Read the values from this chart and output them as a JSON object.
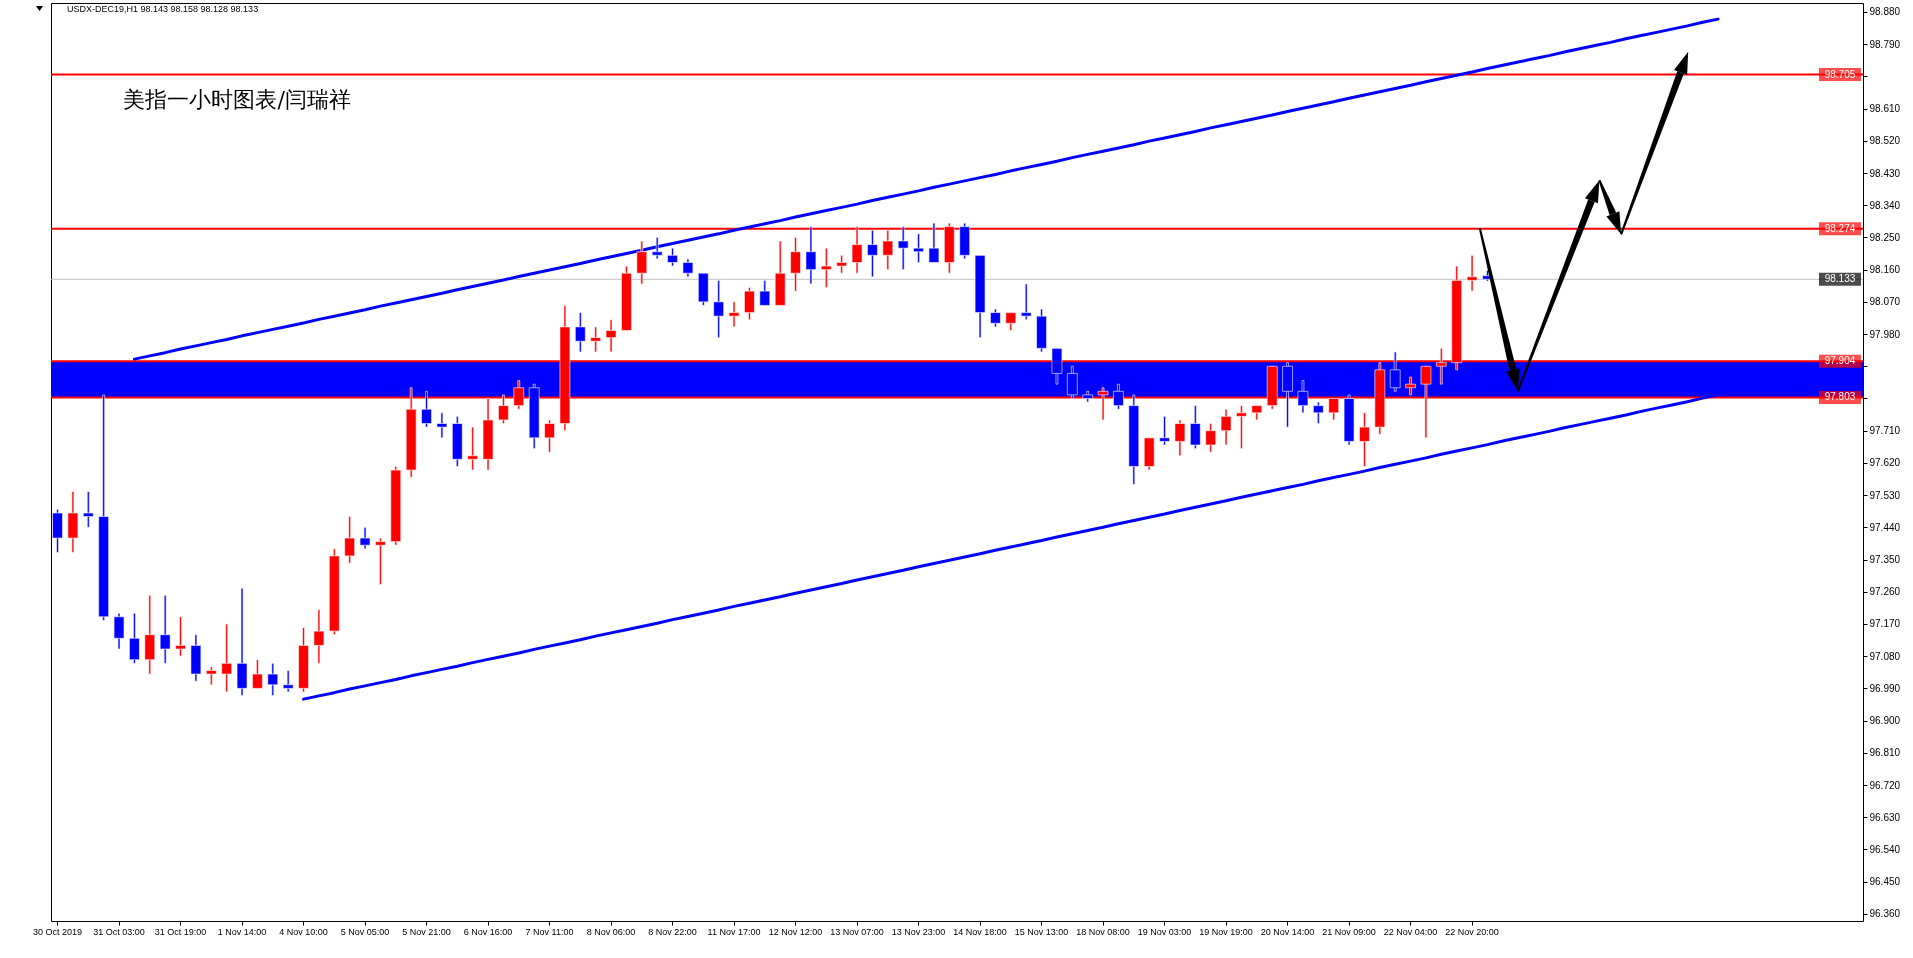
{
  "chart_data": {
    "type": "candlestick",
    "title": "美指一小时图表/闫瑞祥",
    "subtitle": "USDX-DEC19,H1  98.143 98.158 98.128 98.133",
    "categories": [
      "30 Oct 2019",
      null,
      null,
      null,
      "31 Oct 03:00",
      null,
      null,
      null,
      "31 Oct 19:00",
      null,
      null,
      null,
      "1 Nov 14:00",
      null,
      null,
      null,
      "4 Nov 10:00",
      null,
      null,
      null,
      "5 Nov 05:00",
      null,
      null,
      null,
      "5 Nov 21:00",
      null,
      null,
      null,
      "6 Nov 16:00",
      null,
      null,
      null,
      "7 Nov 11:00",
      null,
      null,
      null,
      "8 Nov 06:00",
      null,
      null,
      null,
      "8 Nov 22:00",
      null,
      null,
      null,
      "11 Nov 17:00",
      null,
      null,
      null,
      "12 Nov 12:00",
      null,
      null,
      null,
      "13 Nov 07:00",
      null,
      null,
      null,
      "13 Nov 23:00",
      null,
      null,
      null,
      "14 Nov 18:00",
      null,
      null,
      null,
      "15 Nov 13:00",
      null,
      null,
      null,
      "18 Nov 08:00",
      null,
      null,
      null,
      "19 Nov 03:00",
      null,
      null,
      null,
      "19 Nov 19:00",
      null,
      null,
      null,
      "20 Nov 14:00",
      null,
      null,
      null,
      "21 Nov 09:00",
      null,
      null,
      null,
      "22 Nov 04:00",
      null,
      null,
      null,
      "22 Nov 20:00",
      null,
      null,
      null,
      null,
      null,
      null,
      null,
      null,
      null,
      null,
      null,
      null,
      null,
      null,
      null,
      null,
      null,
      null,
      null,
      null,
      null,
      null,
      null,
      null,
      null
    ],
    "ohlc": [
      [
        97.48,
        97.49,
        97.37,
        97.41
      ],
      [
        97.41,
        97.54,
        97.37,
        97.48
      ],
      [
        97.48,
        97.54,
        97.44,
        97.47
      ],
      [
        97.47,
        97.81,
        97.18,
        97.19
      ],
      [
        97.19,
        97.2,
        97.1,
        97.13
      ],
      [
        97.13,
        97.2,
        97.06,
        97.07
      ],
      [
        97.07,
        97.25,
        97.03,
        97.14
      ],
      [
        97.14,
        97.25,
        97.06,
        97.1
      ],
      [
        97.1,
        97.19,
        97.08,
        97.11
      ],
      [
        97.11,
        97.14,
        97.01,
        97.03
      ],
      [
        97.03,
        97.05,
        97.0,
        97.04
      ],
      [
        97.03,
        97.17,
        96.98,
        97.06
      ],
      [
        97.06,
        97.27,
        96.97,
        96.99
      ],
      [
        96.99,
        97.07,
        96.99,
        97.03
      ],
      [
        97.03,
        97.06,
        96.97,
        97.0
      ],
      [
        97.0,
        97.04,
        96.98,
        96.99
      ],
      [
        96.99,
        97.16,
        96.98,
        97.11
      ],
      [
        97.11,
        97.21,
        97.06,
        97.15
      ],
      [
        97.15,
        97.38,
        97.14,
        97.36
      ],
      [
        97.36,
        97.47,
        97.34,
        97.41
      ],
      [
        97.41,
        97.44,
        97.38,
        97.39
      ],
      [
        97.39,
        97.41,
        97.28,
        97.4
      ],
      [
        97.4,
        97.61,
        97.39,
        97.6
      ],
      [
        97.6,
        97.83,
        97.58,
        97.77
      ],
      [
        97.77,
        97.82,
        97.72,
        97.73
      ],
      [
        97.73,
        97.76,
        97.69,
        97.72
      ],
      [
        97.73,
        97.75,
        97.61,
        97.63
      ],
      [
        97.63,
        97.72,
        97.6,
        97.64
      ],
      [
        97.63,
        97.8,
        97.6,
        97.74
      ],
      [
        97.74,
        97.81,
        97.73,
        97.78
      ],
      [
        97.78,
        97.85,
        97.77,
        97.83
      ],
      [
        97.83,
        97.84,
        97.66,
        97.69
      ],
      [
        97.69,
        97.74,
        97.65,
        97.73
      ],
      [
        97.73,
        98.06,
        97.71,
        98.0
      ],
      [
        98.0,
        98.04,
        97.93,
        97.96
      ],
      [
        97.96,
        98.0,
        97.93,
        97.97
      ],
      [
        97.97,
        98.02,
        97.93,
        97.99
      ],
      [
        97.99,
        98.17,
        97.99,
        98.15
      ],
      [
        98.15,
        98.24,
        98.12,
        98.21
      ],
      [
        98.21,
        98.25,
        98.19,
        98.2
      ],
      [
        98.2,
        98.22,
        98.17,
        98.18
      ],
      [
        98.18,
        98.19,
        98.14,
        98.15
      ],
      [
        98.15,
        98.15,
        98.06,
        98.07
      ],
      [
        98.07,
        98.13,
        97.97,
        98.03
      ],
      [
        98.03,
        98.07,
        98.0,
        98.04
      ],
      [
        98.04,
        98.11,
        98.02,
        98.1
      ],
      [
        98.1,
        98.13,
        98.06,
        98.06
      ],
      [
        98.06,
        98.24,
        98.06,
        98.15
      ],
      [
        98.15,
        98.25,
        98.1,
        98.21
      ],
      [
        98.21,
        98.28,
        98.12,
        98.16
      ],
      [
        98.16,
        98.22,
        98.11,
        98.17
      ],
      [
        98.17,
        98.2,
        98.15,
        98.18
      ],
      [
        98.18,
        98.28,
        98.15,
        98.23
      ],
      [
        98.23,
        98.27,
        98.14,
        98.2
      ],
      [
        98.2,
        98.27,
        98.16,
        98.24
      ],
      [
        98.24,
        98.28,
        98.16,
        98.22
      ],
      [
        98.22,
        98.26,
        98.18,
        98.21
      ],
      [
        98.22,
        98.29,
        98.18,
        98.18
      ],
      [
        98.18,
        98.29,
        98.15,
        98.28
      ],
      [
        98.28,
        98.29,
        98.19,
        98.2
      ],
      [
        98.2,
        98.2,
        97.97,
        98.04
      ],
      [
        98.04,
        98.05,
        98.0,
        98.01
      ],
      [
        98.01,
        98.04,
        97.99,
        98.04
      ],
      [
        98.04,
        98.12,
        98.02,
        98.03
      ],
      [
        98.03,
        98.05,
        97.93,
        97.94
      ],
      [
        97.94,
        97.94,
        97.84,
        97.87
      ],
      [
        97.87,
        97.89,
        97.8,
        97.81
      ],
      [
        97.81,
        97.82,
        97.79,
        97.8
      ],
      [
        97.81,
        97.83,
        97.74,
        97.82
      ],
      [
        97.82,
        97.84,
        97.77,
        97.78
      ],
      [
        97.78,
        97.81,
        97.56,
        97.61
      ],
      [
        97.61,
        97.69,
        97.6,
        97.69
      ],
      [
        97.69,
        97.75,
        97.67,
        97.68
      ],
      [
        97.68,
        97.74,
        97.64,
        97.73
      ],
      [
        97.73,
        97.78,
        97.66,
        97.67
      ],
      [
        97.67,
        97.73,
        97.65,
        97.71
      ],
      [
        97.71,
        97.77,
        97.67,
        97.75
      ],
      [
        97.75,
        97.78,
        97.66,
        97.76
      ],
      [
        97.76,
        97.78,
        97.74,
        97.78
      ],
      [
        97.78,
        97.89,
        97.77,
        97.89
      ],
      [
        97.89,
        97.9,
        97.72,
        97.82
      ],
      [
        97.82,
        97.85,
        97.76,
        97.78
      ],
      [
        97.78,
        97.79,
        97.73,
        97.76
      ],
      [
        97.76,
        97.8,
        97.74,
        97.8
      ],
      [
        97.8,
        97.81,
        97.67,
        97.68
      ],
      [
        97.68,
        97.76,
        97.61,
        97.72
      ],
      [
        97.72,
        97.9,
        97.7,
        97.88
      ],
      [
        97.88,
        97.93,
        97.82,
        97.83
      ],
      [
        97.83,
        97.86,
        97.81,
        97.84
      ],
      [
        97.84,
        97.89,
        97.69,
        97.89
      ],
      [
        97.89,
        97.94,
        97.84,
        97.9
      ],
      [
        97.9,
        98.17,
        97.88,
        98.13
      ],
      [
        98.13,
        98.2,
        98.1,
        98.14
      ],
      [
        98.143,
        98.158,
        98.128,
        98.133
      ],
      null,
      null,
      null,
      null,
      null,
      null,
      null,
      null,
      null,
      null,
      null,
      null,
      null,
      null,
      null,
      null,
      null,
      null,
      null,
      null,
      null,
      null,
      null,
      null
    ],
    "colors": [
      "#0000ff",
      "#ff0000",
      "#0000ff",
      "#0000ff",
      "#0000ff",
      "#0000ff",
      "#ff0000",
      "#0000ff",
      "#ff0000",
      "#0000ff",
      "#ff0000",
      "#ff0000",
      "#0000ff",
      "#ff0000",
      "#0000ff",
      "#0000ff",
      "#ff0000",
      "#ff0000",
      "#ff0000",
      "#ff0000",
      "#0000ff",
      "#ff0000",
      "#ff0000",
      "#ff0000",
      "#0000ff",
      "#0000ff",
      "#0000ff",
      "#ff0000",
      "#ff0000",
      "#ff0000",
      "#ff0000",
      "#0000ff",
      "#ff0000",
      "#ff0000",
      "#0000ff",
      "#ff0000",
      "#ff0000",
      "#ff0000",
      "#ff0000",
      "#0000ff",
      "#0000ff",
      "#0000ff",
      "#0000ff",
      "#0000ff",
      "#ff0000",
      "#ff0000",
      "#0000ff",
      "#ff0000",
      "#ff0000",
      "#0000ff",
      "#ff0000",
      "#ff0000",
      "#ff0000",
      "#0000ff",
      "#ff0000",
      "#0000ff",
      "#0000ff",
      "#0000ff",
      "#ff0000",
      "#0000ff",
      "#0000ff",
      "#0000ff",
      "#ff0000",
      "#0000ff",
      "#0000ff",
      "#0000ff",
      "#0000ff",
      "#0000ff",
      "#ff0000",
      "#0000ff",
      "#0000ff",
      "#ff0000",
      "#0000ff",
      "#ff0000",
      "#0000ff",
      "#ff0000",
      "#ff0000",
      "#ff0000",
      "#ff0000",
      "#ff0000",
      "#0000ff",
      "#0000ff",
      "#0000ff",
      "#ff0000",
      "#0000ff",
      "#ff0000",
      "#ff0000",
      "#0000ff",
      "#ff0000",
      "#ff0000",
      "#ff0000",
      "#ff0000",
      "#ff0000",
      "#0000ff",
      null,
      null,
      null,
      null,
      null,
      null,
      null,
      null,
      null,
      null,
      null,
      null,
      null,
      null,
      null,
      null,
      null,
      null,
      null,
      null,
      null,
      null,
      null,
      null
    ],
    "series": [
      {
        "type": "line",
        "color": "#0000ff",
        "values": [
          null,
          null,
          null,
          null,
          null,
          null,
          null,
          null,
          null,
          null,
          null,
          null,
          null,
          null,
          null,
          null,
          96.96,
          96.969,
          96.978,
          96.988,
          96.997,
          97.006,
          97.015,
          97.025,
          97.034,
          97.043,
          97.052,
          97.062,
          97.071,
          97.08,
          97.089,
          97.099,
          97.108,
          97.117,
          97.126,
          97.136,
          97.145,
          97.154,
          97.163,
          97.172,
          97.182,
          97.191,
          97.2,
          97.209,
          97.219,
          97.228,
          97.237,
          97.246,
          97.256,
          97.265,
          97.274,
          97.283,
          97.293,
          97.302,
          97.311,
          97.32,
          97.33,
          97.339,
          97.348,
          97.357,
          97.366,
          97.376,
          97.385,
          97.394,
          97.403,
          97.413,
          97.422,
          97.431,
          97.44,
          97.45,
          97.459,
          97.468,
          97.477,
          97.487,
          97.496,
          97.505,
          97.514,
          97.524,
          97.533,
          97.542,
          97.551,
          97.56,
          97.57,
          97.579,
          97.588,
          97.597,
          97.607,
          97.616,
          97.625,
          97.634,
          97.644,
          97.653,
          97.662,
          97.671,
          97.681,
          97.69,
          97.699,
          97.708,
          97.718,
          97.727,
          97.736,
          97.745,
          97.754,
          97.764,
          97.773,
          97.782,
          97.791,
          97.801,
          97.81,
          null,
          null,
          null,
          null,
          null,
          null,
          null,
          null,
          null
        ]
      },
      {
        "type": "line",
        "color": "#0000ff",
        "values": [
          null,
          null,
          null,
          null,
          null,
          97.91,
          97.919,
          97.928,
          97.938,
          97.947,
          97.956,
          97.965,
          97.975,
          97.984,
          97.993,
          98.002,
          98.011,
          98.021,
          98.03,
          98.039,
          98.048,
          98.058,
          98.067,
          98.076,
          98.085,
          98.094,
          98.104,
          98.113,
          98.122,
          98.131,
          98.141,
          98.15,
          98.159,
          98.168,
          98.177,
          98.187,
          98.196,
          98.205,
          98.214,
          98.224,
          98.233,
          98.242,
          98.251,
          98.26,
          98.27,
          98.279,
          98.288,
          98.297,
          98.307,
          98.316,
          98.325,
          98.334,
          98.343,
          98.353,
          98.362,
          98.371,
          98.38,
          98.39,
          98.399,
          98.408,
          98.417,
          98.426,
          98.436,
          98.445,
          98.454,
          98.463,
          98.473,
          98.482,
          98.491,
          98.5,
          98.509,
          98.519,
          98.528,
          98.537,
          98.546,
          98.556,
          98.565,
          98.574,
          98.583,
          98.592,
          98.602,
          98.611,
          98.62,
          98.629,
          98.639,
          98.648,
          98.657,
          98.666,
          98.675,
          98.685,
          98.694,
          98.703,
          98.712,
          98.722,
          98.731,
          98.74,
          98.749,
          98.758,
          98.768,
          98.777,
          98.786,
          98.795,
          98.805,
          98.814,
          98.823,
          98.832,
          98.841,
          98.851,
          98.86,
          null,
          null,
          null,
          null,
          null,
          null,
          null,
          null,
          null
        ]
      }
    ],
    "ylim": [
      96.34,
      98.905
    ],
    "yticks": [
      {
        "value": 96.36,
        "label": "96.360"
      },
      {
        "value": 96.45,
        "label": "96.450"
      },
      {
        "value": 96.54,
        "label": "96.540"
      },
      {
        "value": 96.63,
        "label": "96.630"
      },
      {
        "value": 96.72,
        "label": "96.720"
      },
      {
        "value": 96.81,
        "label": "96.810"
      },
      {
        "value": 96.9,
        "label": "96.900"
      },
      {
        "value": 96.99,
        "label": "96.990"
      },
      {
        "value": 97.08,
        "label": "97.080"
      },
      {
        "value": 97.17,
        "label": "97.170"
      },
      {
        "value": 97.26,
        "label": "97.260"
      },
      {
        "value": 97.35,
        "label": "97.350"
      },
      {
        "value": 97.44,
        "label": "97.440"
      },
      {
        "value": 97.53,
        "label": "97.530"
      },
      {
        "value": 97.62,
        "label": "97.620"
      },
      {
        "value": 97.71,
        "label": "97.710"
      },
      {
        "value": 97.8,
        "label": null
      },
      {
        "value": 97.89,
        "label": null
      },
      {
        "value": 97.98,
        "label": "97.980"
      },
      {
        "value": 98.07,
        "label": "98.070"
      },
      {
        "value": 98.16,
        "label": "98.160"
      },
      {
        "value": 98.25,
        "label": "98.250"
      },
      {
        "value": 98.34,
        "label": "98.340"
      },
      {
        "value": 98.43,
        "label": "98.430"
      },
      {
        "value": 98.52,
        "label": "98.520"
      },
      {
        "value": 98.61,
        "label": "98.610"
      },
      {
        "value": 98.7,
        "label": null
      },
      {
        "value": 98.79,
        "label": "98.790"
      },
      {
        "value": 98.88,
        "label": "98.880"
      }
    ],
    "bands": [
      {
        "axis": "y",
        "from": 97.803,
        "to": 97.904,
        "color": "#0000ff"
      }
    ],
    "ref_lines": [
      {
        "axis": "y",
        "value": 98.705,
        "label": "98.705",
        "color": "#ff0000"
      },
      {
        "axis": "y",
        "value": 98.274,
        "label": "98.274",
        "color": "#ff0000"
      },
      {
        "axis": "y",
        "value": 98.133,
        "label": "98.133",
        "color": "#c0c0c0"
      },
      {
        "axis": "y",
        "value": 97.904,
        "label": "97.904",
        "color": "#ff0000"
      },
      {
        "axis": "y",
        "value": 97.803,
        "label": "97.803",
        "color": "#ff0000"
      }
    ]
  }
}
